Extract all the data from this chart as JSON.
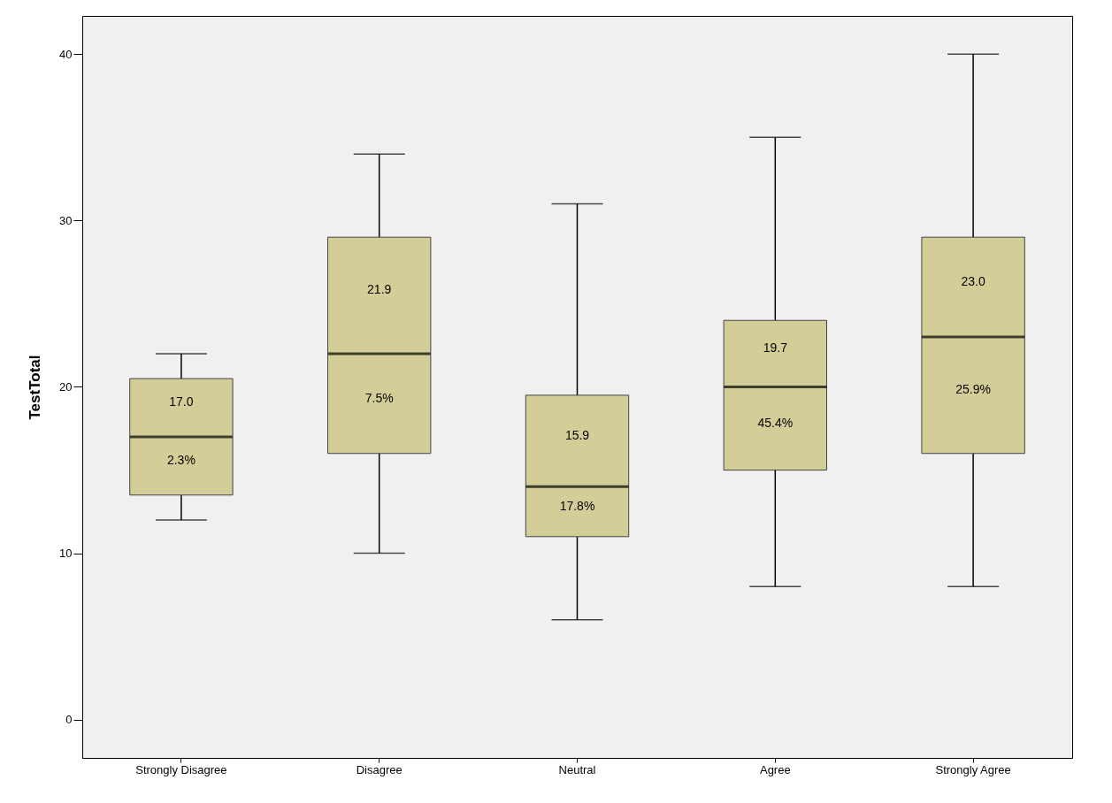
{
  "chart_data": {
    "type": "box",
    "ylabel": "TestTotal",
    "categories": [
      "Strongly Disagree",
      "Disagree",
      "Neutral",
      "Agree",
      "Strongly Agree"
    ],
    "color": "#d3ce97",
    "boxes": [
      {
        "low": 12,
        "q1": 13.5,
        "median": 17,
        "q3": 20.5,
        "high": 22
      },
      {
        "low": 10,
        "q1": 16,
        "median": 22,
        "q3": 29,
        "high": 34
      },
      {
        "low": 6,
        "q1": 11,
        "median": 14,
        "q3": 19.5,
        "high": 31
      },
      {
        "low": 8,
        "q1": 15,
        "median": 20,
        "q3": 24,
        "high": 35
      },
      {
        "low": 8,
        "q1": 16,
        "median": 23,
        "q3": 29,
        "high": 40
      }
    ],
    "ylim": [
      -2.3,
      42.3
    ],
    "yticks": [
      0,
      10,
      20,
      30,
      40
    ],
    "grid": false,
    "annotations": [
      "17.0",
      "2.3%",
      "21.9",
      "7.5%",
      "15.9",
      "17.8%",
      "19.7",
      "45.4%",
      "23.0",
      "25.9%"
    ]
  }
}
